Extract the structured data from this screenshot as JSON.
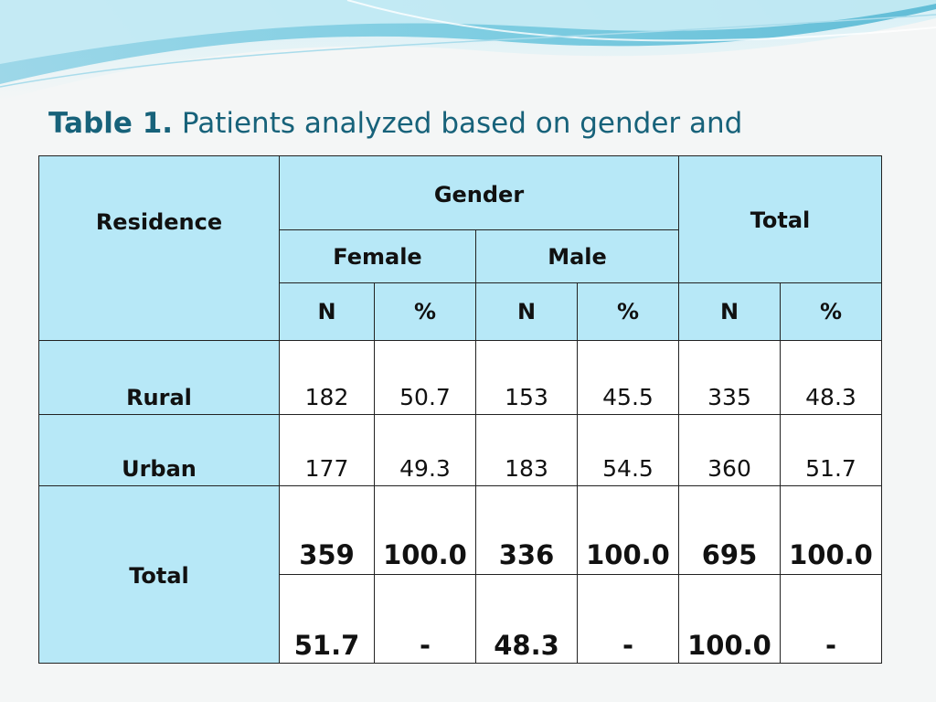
{
  "title": {
    "prefix": "Table 1.",
    "text": "Patients analyzed based on gender and"
  },
  "table": {
    "headers": {
      "residence": "Residence",
      "gender": "Gender",
      "total": "Total",
      "female": "Female",
      "male": "Male",
      "subcols": [
        "N",
        "%",
        "N",
        "%",
        "N",
        "%"
      ]
    },
    "rows": [
      {
        "label": "Rural",
        "values": [
          "182",
          "50.7",
          "153",
          "45.5",
          "335",
          "48.3"
        ]
      },
      {
        "label": "Urban",
        "values": [
          "177",
          "49.3",
          "183",
          "54.5",
          "360",
          "51.7"
        ]
      }
    ],
    "total": {
      "label": "Total",
      "counts": [
        "359",
        "100.0",
        "336",
        "100.0",
        "695",
        "100.0"
      ],
      "shares": [
        "51.7",
        "-",
        "48.3",
        "-",
        "100.0",
        "-"
      ]
    }
  },
  "colors": {
    "header_fill": "#b7e8f7",
    "title_color": "#17627a",
    "wave_dark": "#5bbfd6",
    "wave_light": "#c9ecf5"
  }
}
